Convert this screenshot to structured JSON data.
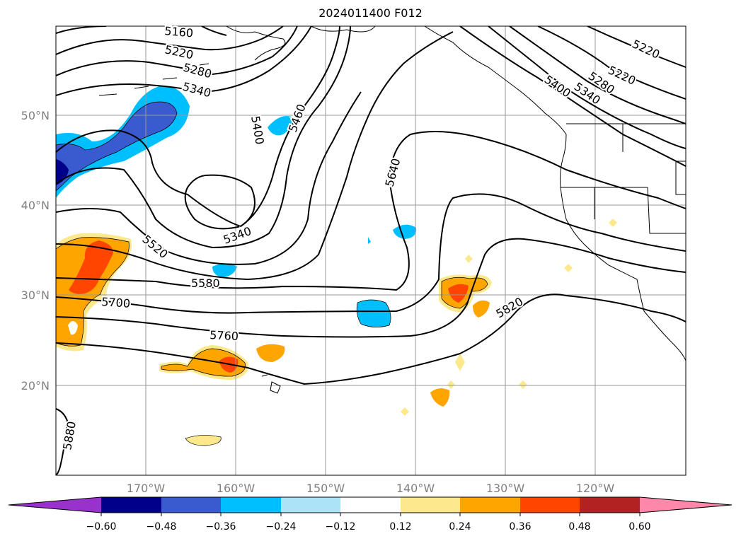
{
  "title": "2024011400 F012",
  "colors": {
    "neg_060": "#9932cc",
    "neg_048": "#00008b",
    "neg_036": "#3a5bcf",
    "neg_024": "#00bfff",
    "neg_012": "#ade3f7",
    "zero": "#ffffff",
    "pos_012": "#fde98c",
    "pos_024": "#ffa500",
    "pos_036": "#ff4500",
    "pos_048": "#b22222",
    "pos_060": "#ff88aa",
    "contour": "#000000",
    "grid": "#999999",
    "tick_label": "#808080"
  },
  "lat_labels": [
    "50°N",
    "40°N",
    "30°N",
    "20°N"
  ],
  "lon_labels": [
    "170°W",
    "160°W",
    "150°W",
    "140°W",
    "130°W",
    "120°W"
  ],
  "contour_labels": [
    "5160",
    "5220",
    "5280",
    "5340",
    "5400",
    "5460",
    "5340",
    "5520",
    "5580",
    "5640",
    "5700",
    "5760",
    "5820",
    "5880",
    "5220",
    "5220",
    "5280",
    "5340",
    "5400"
  ],
  "colorbar": {
    "ticks": [
      "−0.60",
      "−0.48",
      "−0.36",
      "−0.24",
      "−0.12",
      "0.12",
      "0.24",
      "0.36",
      "0.48",
      "0.60"
    ]
  }
}
